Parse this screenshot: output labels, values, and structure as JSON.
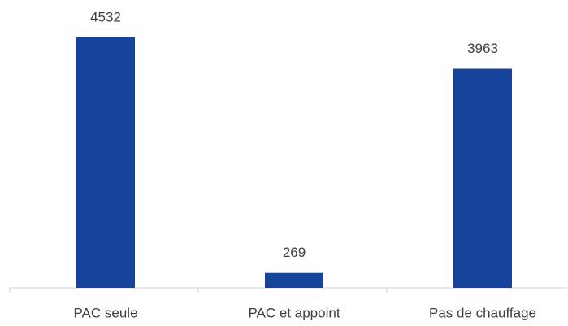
{
  "chart_data": {
    "type": "bar",
    "categories": [
      "PAC seule",
      "PAC et appoint",
      "Pas de chauffage"
    ],
    "values": [
      4532,
      269,
      3963
    ],
    "color": "#17449b",
    "ylim": [
      0,
      5000
    ]
  }
}
